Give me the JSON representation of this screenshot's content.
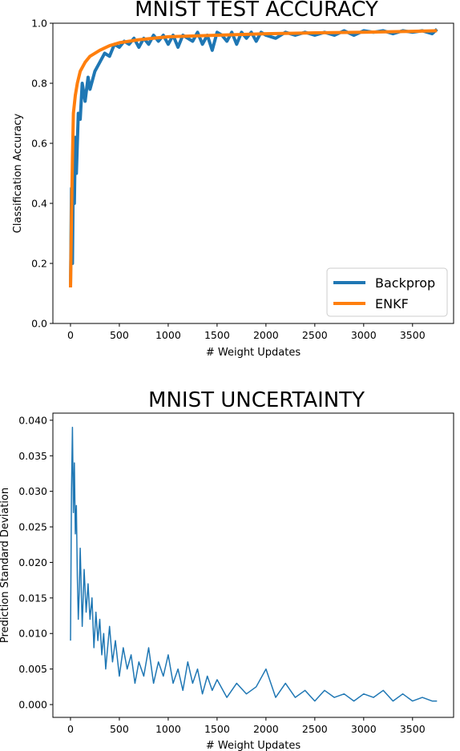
{
  "chart_data": [
    {
      "type": "line",
      "title": "MNIST TEST ACCURACY",
      "xlabel": "# Weight Updates",
      "ylabel": "Classification Accuracy",
      "xlim": [
        -180,
        3920
      ],
      "ylim": [
        0.0,
        1.0
      ],
      "xticks": [
        0,
        500,
        1000,
        1500,
        2000,
        2500,
        3000,
        3500
      ],
      "yticks": [
        0.0,
        0.2,
        0.4,
        0.6,
        0.8,
        1.0
      ],
      "ytick_labels": [
        "0.0",
        "0.2",
        "0.4",
        "0.6",
        "0.8",
        "1.0"
      ],
      "grid": false,
      "legend": "lower-right",
      "series": [
        {
          "name": "Backprop",
          "color": "#1f77b4",
          "x": [
            0,
            10,
            20,
            30,
            40,
            50,
            60,
            80,
            100,
            120,
            150,
            180,
            200,
            250,
            300,
            350,
            400,
            450,
            500,
            550,
            600,
            650,
            700,
            750,
            800,
            850,
            900,
            950,
            1000,
            1050,
            1100,
            1150,
            1200,
            1250,
            1300,
            1350,
            1400,
            1450,
            1500,
            1550,
            1600,
            1650,
            1700,
            1750,
            1800,
            1850,
            1900,
            1950,
            2000,
            2100,
            2200,
            2300,
            2400,
            2500,
            2600,
            2700,
            2800,
            2900,
            3000,
            3100,
            3200,
            3300,
            3400,
            3500,
            3600,
            3700,
            3750
          ],
          "y": [
            0.12,
            0.45,
            0.2,
            0.55,
            0.4,
            0.62,
            0.5,
            0.7,
            0.68,
            0.8,
            0.74,
            0.82,
            0.78,
            0.84,
            0.87,
            0.9,
            0.89,
            0.93,
            0.92,
            0.94,
            0.93,
            0.95,
            0.92,
            0.95,
            0.93,
            0.96,
            0.94,
            0.96,
            0.93,
            0.96,
            0.92,
            0.96,
            0.95,
            0.94,
            0.97,
            0.93,
            0.96,
            0.91,
            0.97,
            0.96,
            0.94,
            0.97,
            0.93,
            0.97,
            0.95,
            0.97,
            0.94,
            0.97,
            0.96,
            0.95,
            0.97,
            0.96,
            0.97,
            0.96,
            0.97,
            0.96,
            0.975,
            0.96,
            0.975,
            0.97,
            0.975,
            0.965,
            0.975,
            0.97,
            0.975,
            0.965,
            0.98
          ]
        },
        {
          "name": "ENKF",
          "color": "#ff7f0e",
          "x": [
            0,
            10,
            20,
            30,
            50,
            70,
            100,
            150,
            200,
            300,
            400,
            500,
            700,
            1000,
            1500,
            2000,
            2500,
            3000,
            3500,
            3750
          ],
          "y": [
            0.12,
            0.35,
            0.55,
            0.7,
            0.76,
            0.8,
            0.84,
            0.87,
            0.89,
            0.91,
            0.925,
            0.935,
            0.945,
            0.955,
            0.96,
            0.965,
            0.968,
            0.97,
            0.973,
            0.975
          ]
        }
      ]
    },
    {
      "type": "line",
      "title": "MNIST UNCERTAINTY",
      "xlabel": "# Weight Updates",
      "ylabel": "Prediction Standard Deviation",
      "xlim": [
        -180,
        3920
      ],
      "ylim": [
        -0.0018,
        0.041
      ],
      "xticks": [
        0,
        500,
        1000,
        1500,
        2000,
        2500,
        3000,
        3500
      ],
      "yticks": [
        0.0,
        0.005,
        0.01,
        0.015,
        0.02,
        0.025,
        0.03,
        0.035,
        0.04
      ],
      "ytick_labels": [
        "0.000",
        "0.005",
        "0.010",
        "0.015",
        "0.020",
        "0.025",
        "0.030",
        "0.035",
        "0.040"
      ],
      "grid": false,
      "series": [
        {
          "color": "#1f77b4",
          "x": [
            0,
            10,
            20,
            30,
            40,
            50,
            60,
            70,
            80,
            90,
            100,
            120,
            140,
            160,
            180,
            200,
            220,
            240,
            260,
            280,
            300,
            320,
            340,
            360,
            380,
            400,
            430,
            460,
            500,
            540,
            580,
            620,
            660,
            700,
            750,
            800,
            850,
            900,
            950,
            1000,
            1050,
            1100,
            1150,
            1200,
            1250,
            1300,
            1350,
            1400,
            1450,
            1500,
            1600,
            1700,
            1800,
            1900,
            2000,
            2100,
            2200,
            2300,
            2400,
            2500,
            2600,
            2700,
            2800,
            2900,
            3000,
            3100,
            3200,
            3300,
            3400,
            3500,
            3600,
            3700,
            3750
          ],
          "y": [
            0.009,
            0.03,
            0.039,
            0.027,
            0.034,
            0.024,
            0.028,
            0.018,
            0.012,
            0.016,
            0.022,
            0.011,
            0.019,
            0.013,
            0.017,
            0.012,
            0.015,
            0.008,
            0.013,
            0.009,
            0.012,
            0.007,
            0.01,
            0.005,
            0.008,
            0.011,
            0.006,
            0.009,
            0.004,
            0.008,
            0.005,
            0.007,
            0.003,
            0.006,
            0.004,
            0.008,
            0.003,
            0.006,
            0.004,
            0.007,
            0.003,
            0.005,
            0.002,
            0.006,
            0.003,
            0.005,
            0.0015,
            0.004,
            0.002,
            0.0035,
            0.001,
            0.003,
            0.0015,
            0.0025,
            0.005,
            0.001,
            0.003,
            0.001,
            0.002,
            0.0005,
            0.002,
            0.001,
            0.0015,
            0.0005,
            0.0015,
            0.001,
            0.002,
            0.0005,
            0.0015,
            0.0005,
            0.001,
            0.0005,
            0.0005
          ]
        }
      ]
    }
  ]
}
